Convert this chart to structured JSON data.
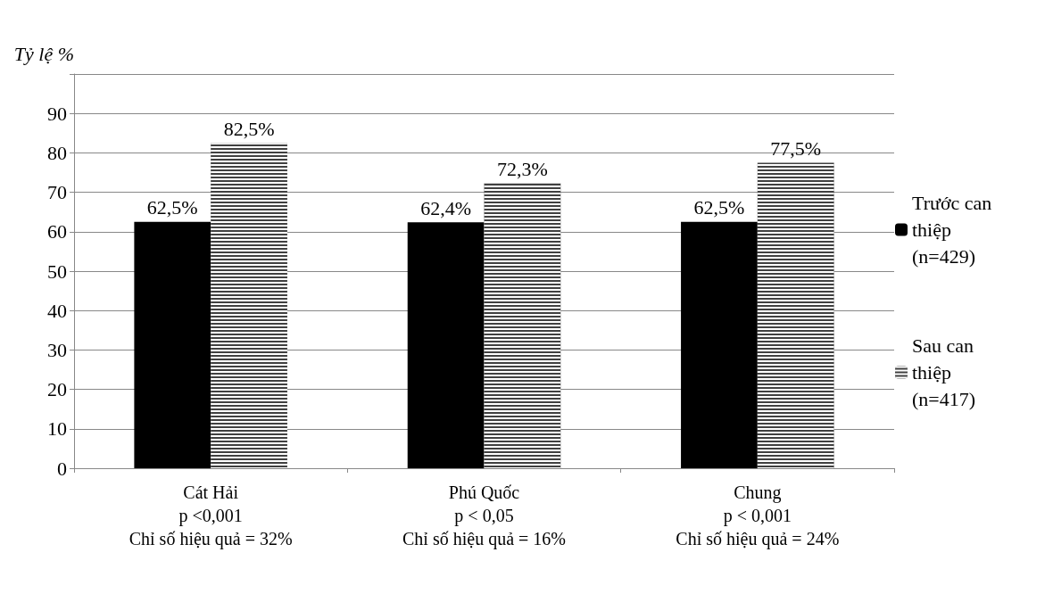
{
  "chart_data": {
    "type": "bar",
    "ylabel": "Tỷ lệ %",
    "categories": [
      "Cát Hải\np <0,001\nChỉ số hiệu quả = 32%",
      "Phú Quốc\np < 0,05\nChỉ số hiệu quả = 16%",
      "Chung\np < 0,001\nChỉ số hiệu quả = 24%"
    ],
    "series": [
      {
        "name": "Trước can thiệp (n=429)",
        "color": "#000000",
        "values": [
          62.5,
          62.4,
          62.5
        ],
        "value_labels": [
          "62,5%",
          "62,4%",
          "62,5%"
        ]
      },
      {
        "name": "Sau can thiệp (n=417)",
        "color": "#404040",
        "values": [
          82.5,
          72.3,
          77.5
        ],
        "value_labels": [
          "82,5%",
          "72,3%",
          "77,5%"
        ]
      }
    ],
    "ylim": [
      0,
      100
    ],
    "yticks": [
      0,
      10,
      20,
      30,
      40,
      50,
      60,
      70,
      80,
      90,
      {
        "value": 100,
        "label": null
      }
    ],
    "grid": "y",
    "legend": "right"
  }
}
